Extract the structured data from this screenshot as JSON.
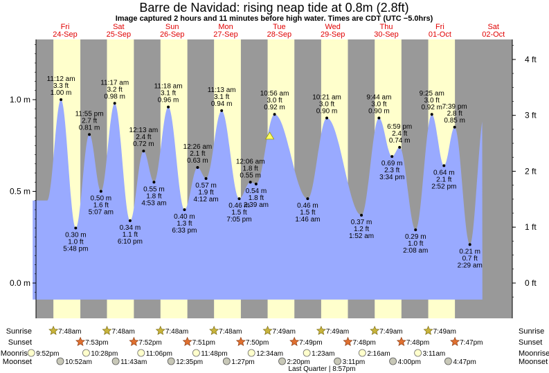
{
  "header": {
    "title": "Barre de Navidad: rising  neap tide at 0.8m (2.8ft)",
    "subtitle": "Image captured 2 hours and 11 minutes before high water. Times are CDT (UTC −5.0hrs)"
  },
  "colors": {
    "night": "#999999",
    "day": "#ffffcc",
    "tide_fill": "#99aaff",
    "day_label": "#e00000",
    "now_marker": "#ffff66"
  },
  "chart_data": {
    "type": "area",
    "y_left_ticks": [
      "1.0 m",
      "0.5 m",
      "0.0 m"
    ],
    "y_right_ticks": [
      "4 ft",
      "3 ft",
      "2 ft",
      "1 ft",
      "0 ft"
    ],
    "ylim_m": [
      -0.09,
      1.32
    ],
    "grid": false,
    "days": [
      {
        "weekday": "Fri",
        "date": "24-Sep"
      },
      {
        "weekday": "Sat",
        "date": "25-Sep"
      },
      {
        "weekday": "Sun",
        "date": "26-Sep"
      },
      {
        "weekday": "Mon",
        "date": "27-Sep"
      },
      {
        "weekday": "Tue",
        "date": "28-Sep"
      },
      {
        "weekday": "Wed",
        "date": "29-Sep"
      },
      {
        "weekday": "Thu",
        "date": "30-Sep"
      },
      {
        "weekday": "Fri",
        "date": "01-Oct"
      },
      {
        "weekday": "Sat",
        "date": "02-Oct"
      }
    ],
    "tides": [
      {
        "type": "high",
        "t": 11.2,
        "m": 1.0,
        "time": "11:12 am",
        "ft": "3.3 ft",
        "level": "1.00 m"
      },
      {
        "type": "low",
        "t": 17.8,
        "m": 0.3,
        "time": "5:48 pm",
        "ft": "1.0 ft",
        "level": "0.30 m"
      },
      {
        "type": "high",
        "t": 23.92,
        "m": 0.81,
        "time": "11:55 pm",
        "ft": "2.7 ft",
        "level": "0.81 m"
      },
      {
        "type": "low",
        "t": 29.12,
        "m": 0.5,
        "time": "5:07 am",
        "ft": "1.6 ft",
        "level": "0.50 m"
      },
      {
        "type": "high",
        "t": 35.28,
        "m": 0.98,
        "time": "11:17 am",
        "ft": "3.2 ft",
        "level": "0.98 m"
      },
      {
        "type": "low",
        "t": 42.17,
        "m": 0.34,
        "time": "6:10 pm",
        "ft": "1.1 ft",
        "level": "0.34 m"
      },
      {
        "type": "high",
        "t": 48.22,
        "m": 0.72,
        "time": "12:13 am",
        "ft": "2.4 ft",
        "level": "0.72 m"
      },
      {
        "type": "low",
        "t": 52.88,
        "m": 0.55,
        "time": "4:53 am",
        "ft": "1.8 ft",
        "level": "0.55 m"
      },
      {
        "type": "high",
        "t": 59.3,
        "m": 0.96,
        "time": "11:18 am",
        "ft": "3.1 ft",
        "level": "0.96 m"
      },
      {
        "type": "low",
        "t": 66.55,
        "m": 0.4,
        "time": "6:33 pm",
        "ft": "1.3 ft",
        "level": "0.40 m"
      },
      {
        "type": "high",
        "t": 72.43,
        "m": 0.63,
        "time": "12:26 am",
        "ft": "2.1 ft",
        "level": "0.63 m"
      },
      {
        "type": "low",
        "t": 76.2,
        "m": 0.57,
        "time": "4:12 am",
        "ft": "1.9 ft",
        "level": "0.57 m"
      },
      {
        "type": "high",
        "t": 83.22,
        "m": 0.94,
        "time": "11:13 am",
        "ft": "3.1 ft",
        "level": "0.94 m"
      },
      {
        "type": "low",
        "t": 91.08,
        "m": 0.46,
        "time": "7:05 pm",
        "ft": "1.5 ft",
        "level": "0.46 m"
      },
      {
        "type": "high",
        "t": 96.1,
        "m": 0.55,
        "time": "12:06 am",
        "ft": "1.8 ft",
        "level": "0.55 m"
      },
      {
        "type": "low",
        "t": 98.65,
        "m": 0.54,
        "time": "2:39 am",
        "ft": "1.8 ft",
        "level": "0.54 m"
      },
      {
        "type": "high",
        "t": 106.93,
        "m": 0.92,
        "time": "10:56 am",
        "ft": "3.0 ft",
        "level": "0.92 m"
      },
      {
        "type": "low",
        "t": 121.77,
        "m": 0.46,
        "time": "1:46 am",
        "ft": "1.5 ft",
        "level": "0.46 m"
      },
      {
        "type": "high",
        "t": 130.35,
        "m": 0.9,
        "time": "10:21 am",
        "ft": "3.0 ft",
        "level": "0.90 m"
      },
      {
        "type": "low",
        "t": 145.87,
        "m": 0.37,
        "time": "1:52 am",
        "ft": "1.2 ft",
        "level": "0.37 m"
      },
      {
        "type": "high",
        "t": 153.73,
        "m": 0.9,
        "time": "9:44 am",
        "ft": "3.0 ft",
        "level": "0.90 m"
      },
      {
        "type": "low",
        "t": 159.57,
        "m": 0.69,
        "time": "3:34 pm",
        "ft": "2.3 ft",
        "level": "0.69 m"
      },
      {
        "type": "high",
        "t": 162.98,
        "m": 0.74,
        "time": "6:59 pm",
        "ft": "2.4 ft",
        "level": "0.74 m"
      },
      {
        "type": "low",
        "t": 170.13,
        "m": 0.29,
        "time": "2:08 am",
        "ft": "1.0 ft",
        "level": "0.29 m"
      },
      {
        "type": "high",
        "t": 177.42,
        "m": 0.92,
        "time": "9:25 am",
        "ft": "3.0 ft",
        "level": "0.92 m"
      },
      {
        "type": "low",
        "t": 182.87,
        "m": 0.64,
        "time": "2:52 pm",
        "ft": "2.1 ft",
        "level": "0.64 m"
      },
      {
        "type": "high",
        "t": 187.65,
        "m": 0.85,
        "time": "7:39 pm",
        "ft": "2.8 ft",
        "level": "0.85 m"
      },
      {
        "type": "low",
        "t": 194.48,
        "m": 0.21,
        "time": "2:29 am",
        "ft": "0.7 ft",
        "level": "0.21 m"
      }
    ],
    "now": {
      "t": 104.75,
      "m": 0.8
    }
  },
  "astro": {
    "row_labels": [
      "Sunrise",
      "Sunset",
      "Moonrise",
      "Moonset"
    ],
    "sunrise": [
      {
        "t": 7.8,
        "label": "7:48am"
      },
      {
        "t": 31.8,
        "label": "7:48am"
      },
      {
        "t": 55.8,
        "label": "7:48am"
      },
      {
        "t": 79.8,
        "label": "7:48am"
      },
      {
        "t": 103.82,
        "label": "7:49am"
      },
      {
        "t": 127.82,
        "label": "7:49am"
      },
      {
        "t": 151.82,
        "label": "7:49am"
      },
      {
        "t": 175.82,
        "label": "7:49am"
      }
    ],
    "sunset": [
      {
        "t": 19.88,
        "label": "7:53pm"
      },
      {
        "t": 43.87,
        "label": "7:52pm"
      },
      {
        "t": 67.85,
        "label": "7:51pm"
      },
      {
        "t": 91.83,
        "label": "7:50pm"
      },
      {
        "t": 115.82,
        "label": "7:49pm"
      },
      {
        "t": 139.8,
        "label": "7:48pm"
      },
      {
        "t": 163.8,
        "label": "7:48pm"
      },
      {
        "t": 187.78,
        "label": "7:47pm"
      }
    ],
    "moonrise": [
      {
        "t": -2.13,
        "label": "9:52pm"
      },
      {
        "t": 22.47,
        "label": "10:28pm"
      },
      {
        "t": 47.1,
        "label": "11:06pm"
      },
      {
        "t": 71.8,
        "label": "11:48pm"
      },
      {
        "t": 96.57,
        "label": "12:34am"
      },
      {
        "t": 121.38,
        "label": "1:23am"
      },
      {
        "t": 146.27,
        "label": "2:16am"
      },
      {
        "t": 171.18,
        "label": "3:11am"
      }
    ],
    "moonset": [
      {
        "t": 10.87,
        "label": "10:52am"
      },
      {
        "t": 35.72,
        "label": "11:43am"
      },
      {
        "t": 60.58,
        "label": "12:35pm"
      },
      {
        "t": 85.45,
        "label": "1:27pm"
      },
      {
        "t": 110.33,
        "label": "2:20pm"
      },
      {
        "t": 135.18,
        "label": "3:11pm"
      },
      {
        "t": 160.0,
        "label": "4:00pm"
      },
      {
        "t": 184.78,
        "label": "4:47pm"
      }
    ],
    "moon_phase": "Last Quarter | 8:57pm"
  }
}
